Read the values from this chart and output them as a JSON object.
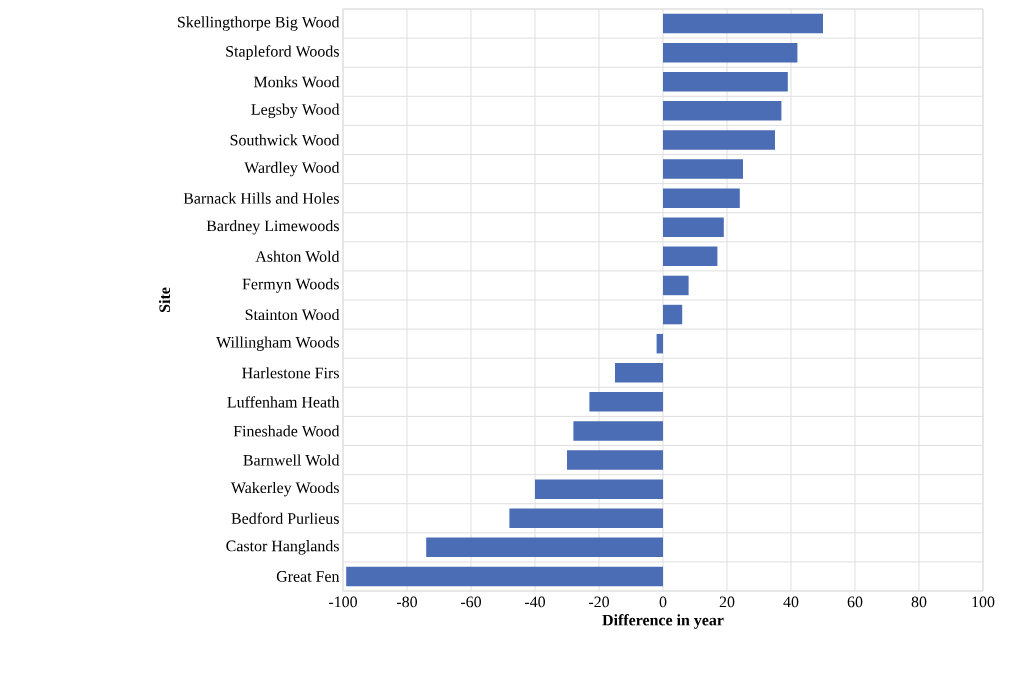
{
  "chart_data": {
    "type": "bar",
    "orientation": "horizontal",
    "xlabel": "Difference in year",
    "ylabel": "Site",
    "categories": [
      "Skellingthorpe Big Wood",
      "Stapleford Woods",
      "Monks Wood",
      "Legsby Wood",
      "Southwick Wood",
      "Wardley Wood",
      "Barnack Hills and Holes",
      "Bardney Limewoods",
      "Ashton Wold",
      "Fermyn Woods",
      "Stainton Wood",
      "Willingham Woods",
      "Harlestone Firs",
      "Luffenham Heath",
      "Fineshade Wood",
      "Barnwell Wold",
      "Wakerley Woods",
      "Bedford Purlieus",
      "Castor Hanglands",
      "Great Fen"
    ],
    "values": [
      50,
      42,
      39,
      37,
      35,
      25,
      24,
      19,
      17,
      8,
      6,
      -2,
      -15,
      -23,
      -28,
      -30,
      -40,
      -48,
      -74,
      -99
    ],
    "color": "#4a6db5",
    "xlim": [
      -100,
      100
    ],
    "xticks": [
      -100,
      -80,
      -60,
      -40,
      -20,
      0,
      20,
      40,
      60,
      80,
      100
    ],
    "grid": true
  }
}
